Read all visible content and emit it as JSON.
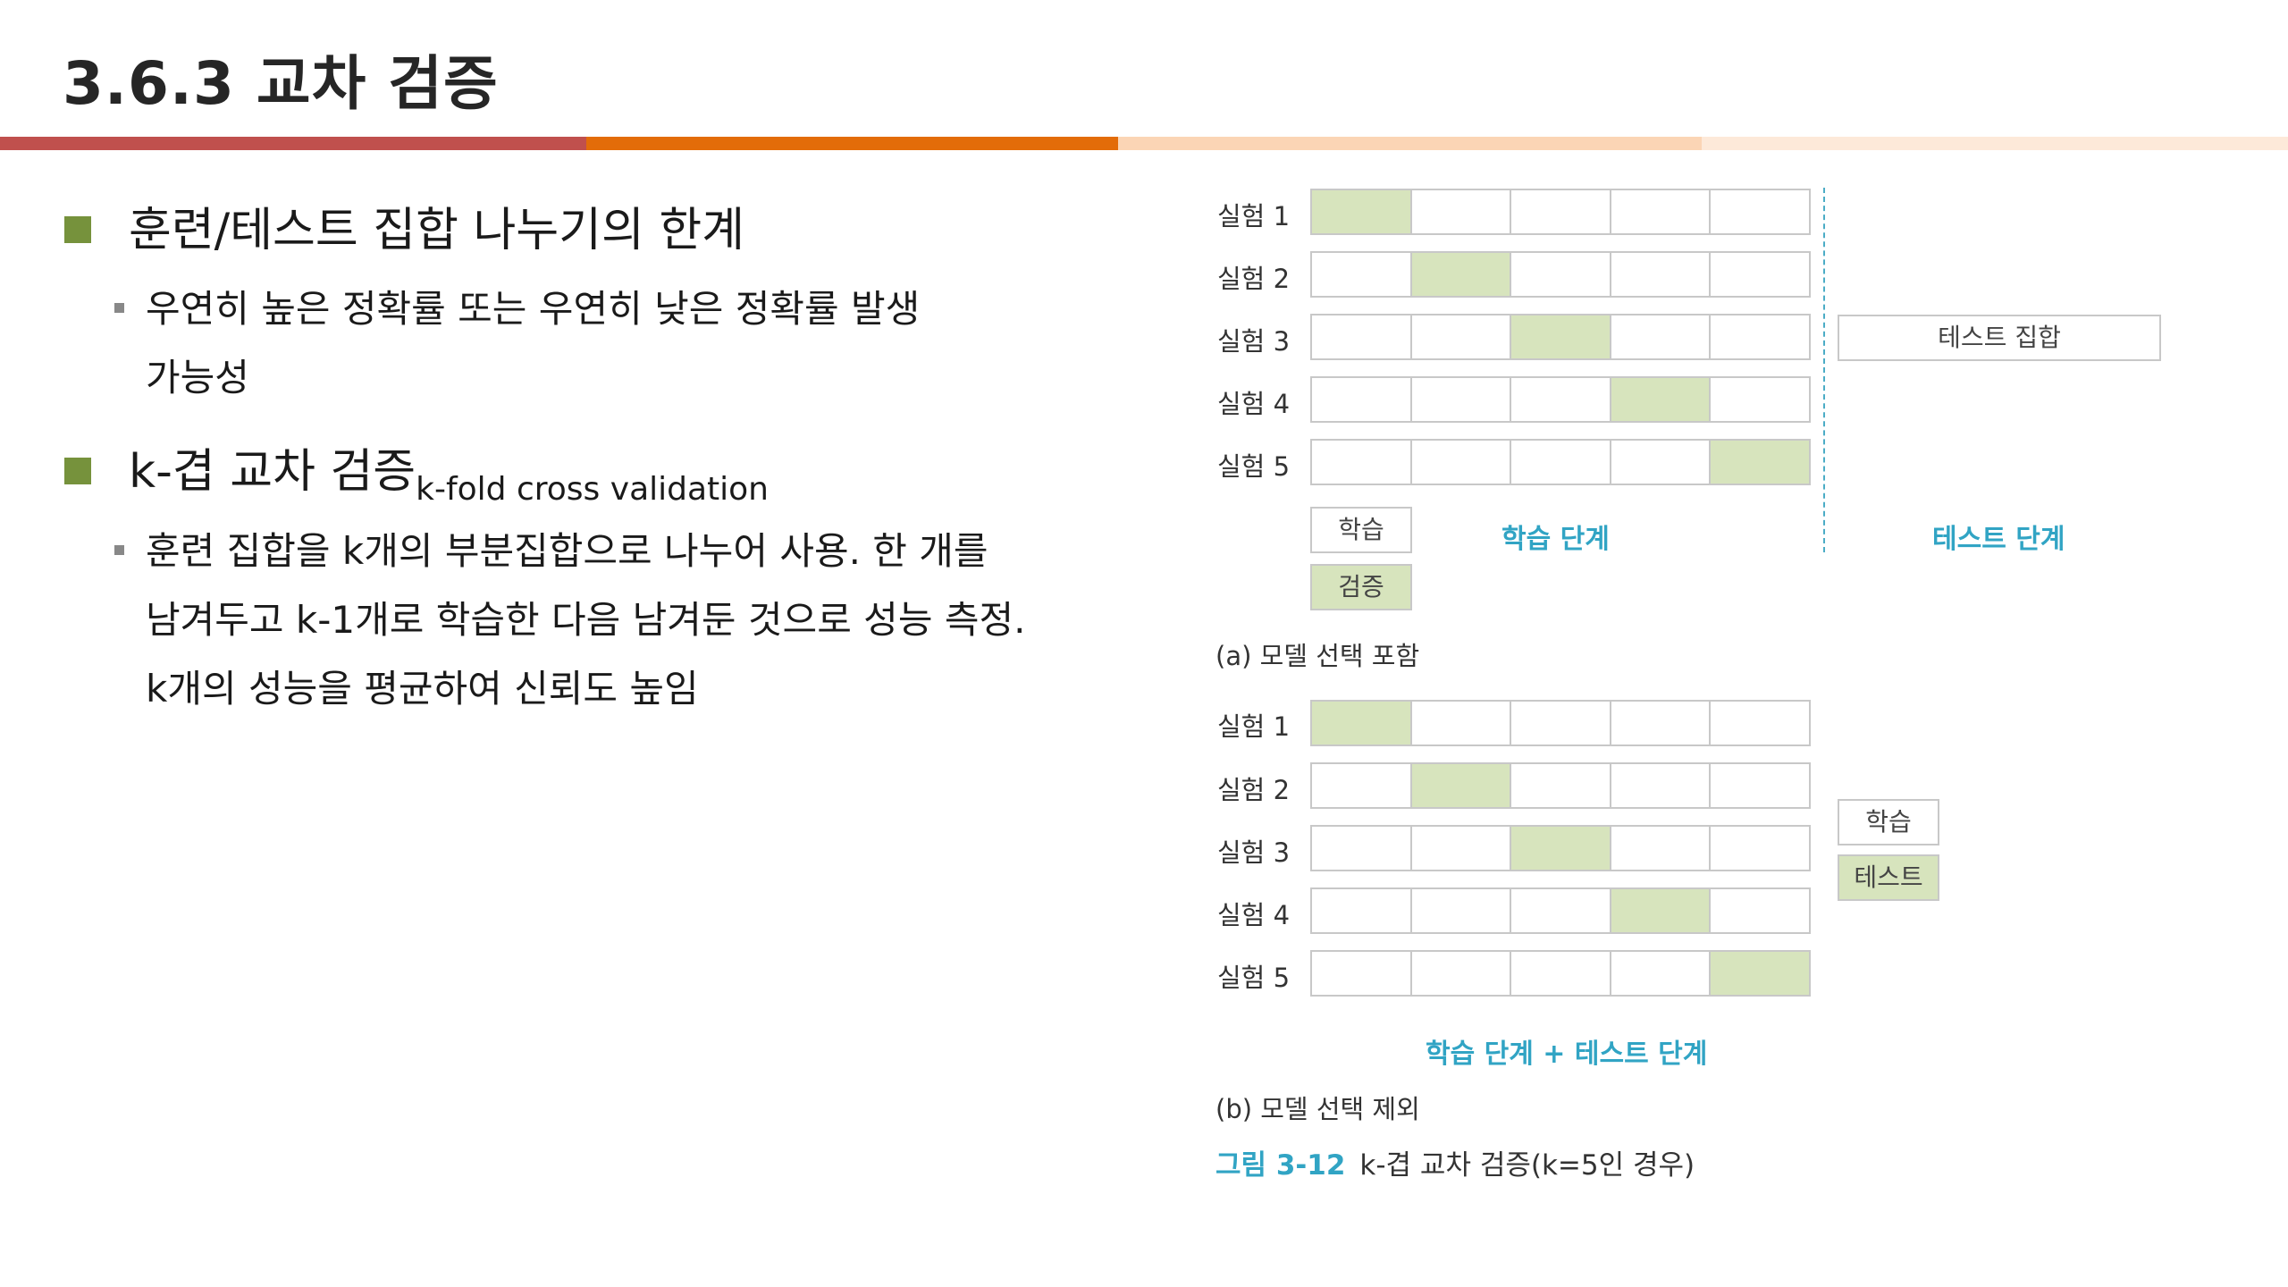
{
  "title": "3.6.3 교차 검증",
  "bullets": {
    "b1": {
      "text": "훈련/테스트 집합 나누기의 한계"
    },
    "b1_sub": {
      "line1": "우연히 높은 정확률 또는 우연히 낮은 정확률 발생",
      "line2": "가능성"
    },
    "b2": {
      "text": "k-겹 교차 검증",
      "sub": "k-fold cross validation"
    },
    "b2_sub": {
      "line1": "훈련 집합을 k개의 부분집합으로 나누어 사용. 한 개를",
      "line2": "남겨두고 k-1개로 학습한 다음 남겨둔 것으로 성능 측정.",
      "line3": "k개의 성능을 평균하여 신뢰도 높임"
    }
  },
  "figure": {
    "trials": [
      "실험 1",
      "실험 2",
      "실험 3",
      "실험 4",
      "실험 5"
    ],
    "a": {
      "test_set": "테스트 집합",
      "legend_train": "학습",
      "legend_val": "검증",
      "phase_train": "학습 단계",
      "phase_test": "테스트 단계",
      "caption": "(a) 모델 선택 포함"
    },
    "b": {
      "legend_train": "학습",
      "legend_test": "테스트",
      "phase": "학습 단계 + 테스트 단계",
      "caption": "(b) 모델 선택 제외"
    },
    "fig_num": "그림 3-12",
    "fig_title": "k-겹 교차 검증(k=5인 경우)"
  },
  "colors": {
    "accent_green": "#76923c",
    "fold_fill": "#d7e4bd",
    "phase_text": "#31a4c4"
  }
}
